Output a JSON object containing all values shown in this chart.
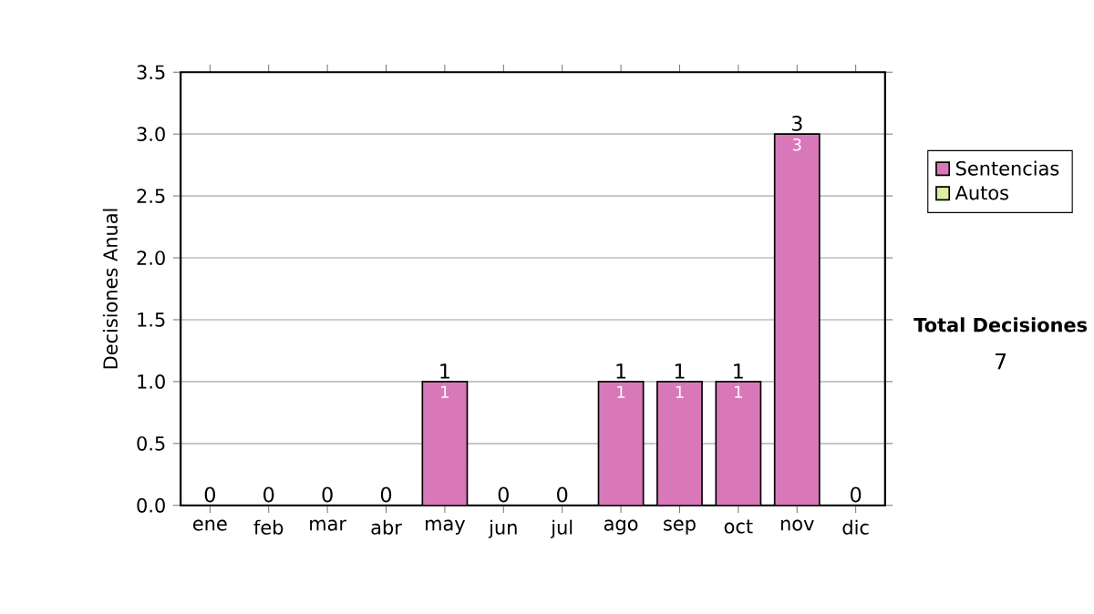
{
  "chart_data": {
    "type": "bar",
    "stacked": true,
    "ylabel": "Decisiones Anual",
    "categories": [
      "ene",
      "feb",
      "mar",
      "abr",
      "may",
      "jun",
      "jul",
      "ago",
      "sep",
      "oct",
      "nov",
      "dic"
    ],
    "series": [
      {
        "name": "Sentencias",
        "color": "#d978b8",
        "values": [
          0,
          0,
          0,
          0,
          1,
          0,
          0,
          1,
          1,
          1,
          3,
          0
        ],
        "value_labels": [
          null,
          null,
          null,
          null,
          "1",
          null,
          null,
          "1",
          "1",
          "1",
          "3",
          null
        ]
      },
      {
        "name": "Autos",
        "color": "#d8f0a0",
        "values": [
          0,
          0,
          0,
          0,
          0,
          0,
          0,
          0,
          0,
          0,
          0,
          0
        ]
      }
    ],
    "totals": [
      "0",
      "0",
      "0",
      "0",
      "1",
      "0",
      "0",
      "1",
      "1",
      "1",
      "3",
      "0"
    ],
    "ylim": [
      0,
      3.5
    ],
    "yticks": [
      {
        "value": 0,
        "label": "0.0"
      },
      {
        "value": 0.5,
        "label": "0.5"
      },
      {
        "value": 1,
        "label": "1.0"
      },
      {
        "value": 1.5,
        "label": "1.5"
      },
      {
        "value": 2,
        "label": "2.0"
      },
      {
        "value": 2.5,
        "label": "2.5"
      },
      {
        "value": 3,
        "label": "3.0"
      },
      {
        "value": 3.5,
        "label": "3.5"
      }
    ],
    "grid": "y",
    "legend": "right",
    "annotations": [
      "Total Decisiones",
      "7"
    ]
  }
}
